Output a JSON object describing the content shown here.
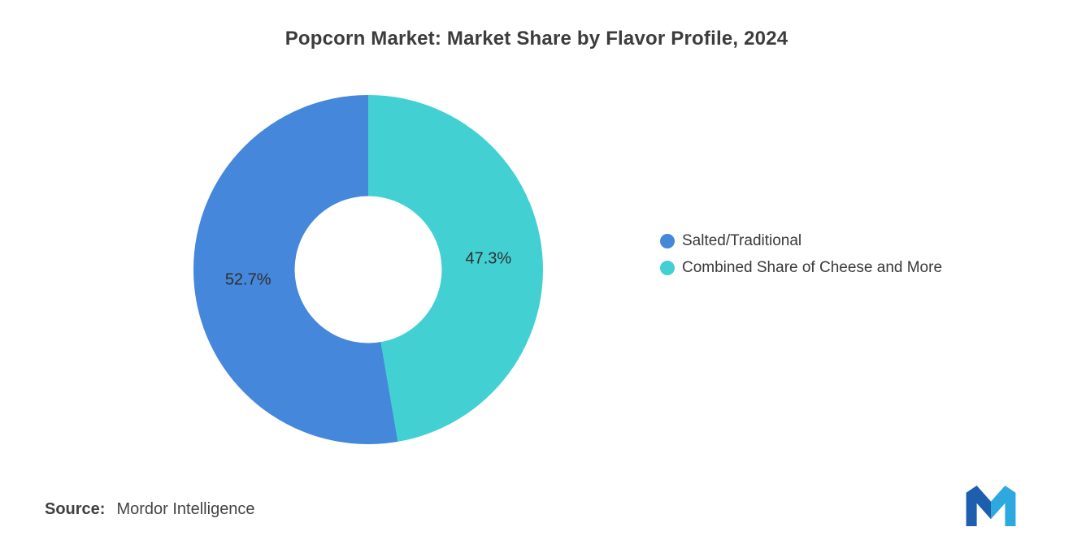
{
  "title": "Popcorn Market: Market Share by Flavor Profile, 2024",
  "source": {
    "prefix": "Source:",
    "name": "Mordor Intelligence"
  },
  "logo": {
    "name": "mordor-intelligence-logo",
    "color_dark": "#1d5fae",
    "color_light": "#2ea9e0"
  },
  "chart_data": {
    "type": "pie",
    "subtype": "donut",
    "title": "Popcorn Market: Market Share by Flavor Profile, 2024",
    "series": [
      {
        "name": "Salted/Traditional",
        "value": 52.7,
        "label": "52.7%",
        "color": "#4587da"
      },
      {
        "name": "Combined Share of Cheese and More",
        "value": 47.3,
        "label": "47.3%",
        "color": "#42d0d3"
      }
    ],
    "start": "top",
    "direction": "counterclockwise",
    "legend_position": "right",
    "legend_marker": "circle",
    "inner_radius_ratio": 0.42,
    "label_radius_ratio": 0.69,
    "background": "#ffffff"
  }
}
